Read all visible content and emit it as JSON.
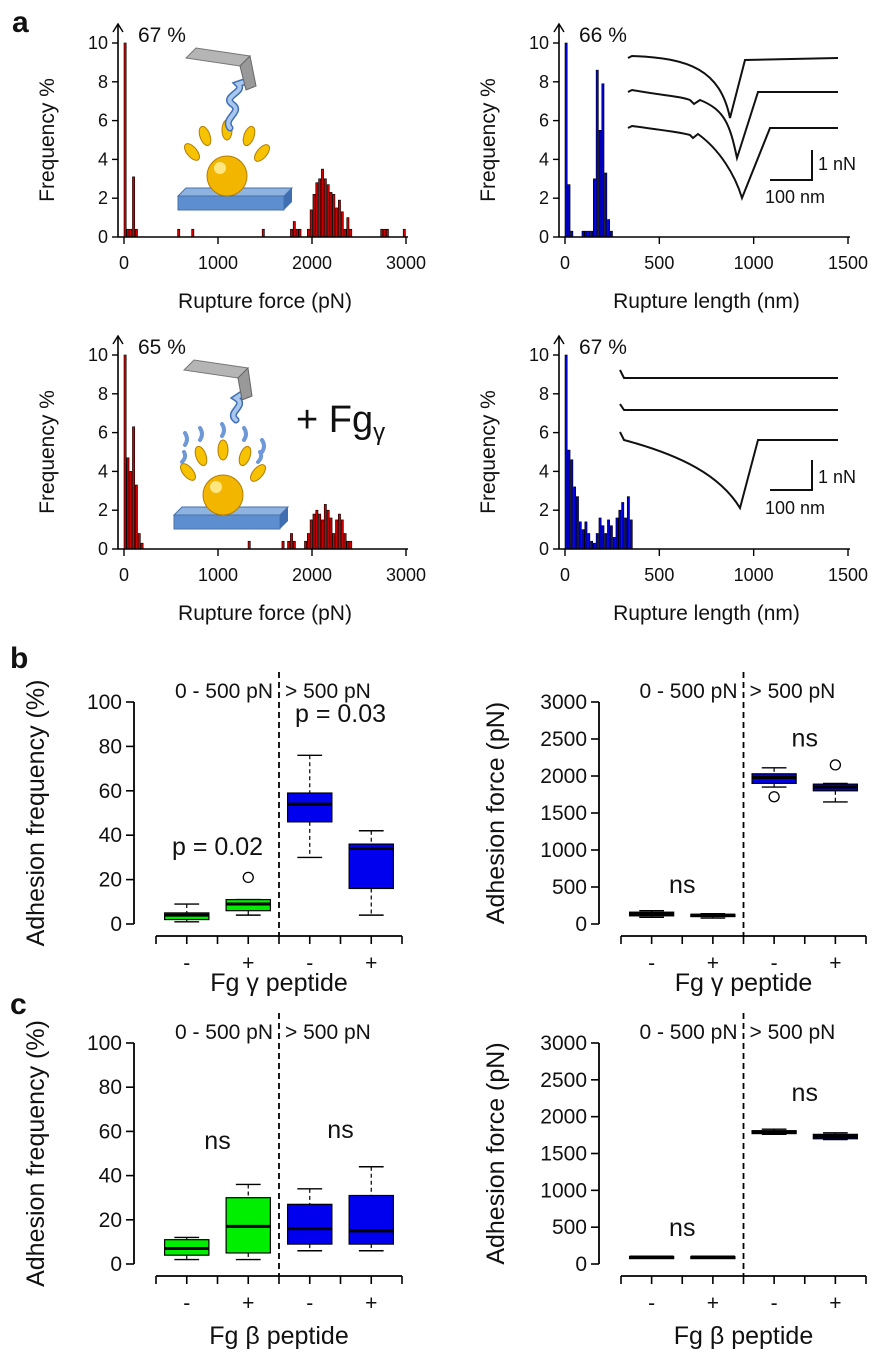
{
  "panel_labels": {
    "a": "a",
    "b": "b",
    "c": "c"
  },
  "annotations": {
    "fg_gamma_a": "+ Fg",
    "fg_gamma_sub": "γ",
    "scale_force": "1 nN",
    "scale_length": "100 nm"
  },
  "chart_data": [
    {
      "id": "a1",
      "type": "bar",
      "color": "#cc0000",
      "xlabel": "Rupture force (pN)",
      "ylabel": "Frequency %",
      "xlim": [
        0,
        3000
      ],
      "ylim": [
        0,
        10
      ],
      "xticks": [
        0,
        1000,
        2000,
        3000
      ],
      "yticks": [
        0,
        2,
        4,
        6,
        8,
        10
      ],
      "bin_width": 30,
      "overflow_label": "67  %",
      "x": [
        0,
        30,
        60,
        90,
        120,
        570,
        720,
        1470,
        1770,
        1800,
        1830,
        1860,
        1950,
        1980,
        2010,
        2040,
        2070,
        2100,
        2130,
        2160,
        2190,
        2220,
        2250,
        2280,
        2310,
        2340,
        2370,
        2400,
        2730,
        2760,
        2790,
        2970
      ],
      "y": [
        10,
        0.4,
        0.4,
        3.1,
        0.4,
        0.4,
        0.4,
        0.4,
        0.4,
        0.8,
        0.4,
        0.4,
        0.4,
        1.4,
        2.2,
        2.8,
        3.0,
        3.5,
        3.0,
        2.7,
        2.3,
        2.2,
        1.5,
        1.9,
        1.3,
        0.4,
        1.0,
        0.4,
        0.4,
        0.4,
        0.4,
        0.4
      ]
    },
    {
      "id": "a2",
      "type": "bar",
      "color": "#0000dd",
      "xlabel": "Rupture length (nm)",
      "ylabel": "Frequency %",
      "xlim": [
        0,
        1500
      ],
      "ylim": [
        0,
        10
      ],
      "xticks": [
        0,
        500,
        1000,
        1500
      ],
      "yticks": [
        0,
        2,
        4,
        6,
        8,
        10
      ],
      "bin_width": 15,
      "overflow_label": "66  %",
      "x": [
        0,
        15,
        30,
        90,
        105,
        120,
        135,
        150,
        165,
        180,
        195,
        210,
        225,
        240
      ],
      "y": [
        10,
        2.7,
        0.3,
        0.3,
        0.3,
        0.3,
        0.3,
        3.0,
        8.6,
        5.5,
        7.9,
        3.3,
        0.9,
        0.3
      ]
    },
    {
      "id": "a3",
      "type": "bar",
      "color": "#cc0000",
      "xlabel": "Rupture force (pN)",
      "ylabel": "Frequency %",
      "xlim": [
        0,
        3000
      ],
      "ylim": [
        0,
        10
      ],
      "xticks": [
        0,
        1000,
        2000,
        3000
      ],
      "yticks": [
        0,
        2,
        4,
        6,
        8,
        10
      ],
      "bin_width": 30,
      "overflow_label": "65  %",
      "x": [
        0,
        30,
        60,
        90,
        120,
        150,
        180,
        1320,
        1680,
        1740,
        1770,
        1800,
        1920,
        1950,
        1980,
        2010,
        2040,
        2070,
        2100,
        2130,
        2160,
        2190,
        2220,
        2250,
        2280,
        2310,
        2340,
        2370,
        2400
      ],
      "y": [
        10,
        4.7,
        4.0,
        6.3,
        3.3,
        0.8,
        0.3,
        0.4,
        0.4,
        0.4,
        0.8,
        0.4,
        0.4,
        0.8,
        1.5,
        1.8,
        2.0,
        1.8,
        1.5,
        2.3,
        2.0,
        1.6,
        0.8,
        1.5,
        1.8,
        1.5,
        0.8,
        0.4,
        0.4
      ]
    },
    {
      "id": "a4",
      "type": "bar",
      "color": "#0000dd",
      "xlabel": "Rupture length (nm)",
      "ylabel": "Frequency %",
      "xlim": [
        0,
        1500
      ],
      "ylim": [
        0,
        10
      ],
      "xticks": [
        0,
        500,
        1000,
        1500
      ],
      "yticks": [
        0,
        2,
        4,
        6,
        8,
        10
      ],
      "bin_width": 15,
      "overflow_label": "67  %",
      "x": [
        0,
        15,
        30,
        45,
        60,
        75,
        90,
        105,
        120,
        135,
        150,
        165,
        180,
        195,
        210,
        225,
        240,
        255,
        270,
        285,
        300,
        315,
        330,
        345
      ],
      "y": [
        10,
        5.1,
        4.6,
        3.2,
        2.7,
        1.4,
        1.0,
        1.4,
        0.8,
        0.4,
        0.3,
        0.8,
        1.6,
        1.2,
        0.8,
        1.5,
        1.2,
        0.6,
        1.6,
        2.0,
        2.4,
        1.6,
        2.7,
        1.5
      ]
    },
    {
      "id": "b1",
      "type": "box",
      "ylabel": "Adhesion frequency (%)",
      "xlabel": "Fg γ peptide",
      "ylim": [
        0,
        100
      ],
      "yticks": [
        0,
        20,
        40,
        60,
        80,
        100
      ],
      "categories": [
        "-",
        "+",
        "-",
        "+"
      ],
      "group_labels": [
        "0 - 500 pN",
        "> 500 pN"
      ],
      "boxes": [
        {
          "color": "#00ee00",
          "whislo": 1,
          "q1": 2,
          "med": 4,
          "q3": 5,
          "whishi": 9,
          "fliers": []
        },
        {
          "color": "#00ee00",
          "whislo": 4,
          "q1": 6,
          "med": 9,
          "q3": 11,
          "whishi": 11,
          "fliers": [
            21
          ]
        },
        {
          "color": "#0000ee",
          "whislo": 30,
          "q1": 46,
          "med": 54,
          "q3": 59,
          "whishi": 76,
          "fliers": []
        },
        {
          "color": "#0000ee",
          "whislo": 4,
          "q1": 16,
          "med": 34,
          "q3": 36,
          "whishi": 42,
          "fliers": []
        }
      ],
      "annotations": [
        {
          "text": "p = 0.02",
          "x": 0.5,
          "y": 31
        },
        {
          "text": "p = 0.03",
          "x": 2.5,
          "y": 91
        }
      ]
    },
    {
      "id": "b2",
      "type": "box",
      "ylabel": "Adhesion force (pN)",
      "xlabel": "Fg γ peptide",
      "ylim": [
        0,
        3000
      ],
      "yticks": [
        0,
        500,
        1000,
        1500,
        2000,
        2500,
        3000
      ],
      "categories": [
        "-",
        "+",
        "-",
        "+"
      ],
      "group_labels": [
        "0 - 500 pN",
        "> 500 pN"
      ],
      "boxes": [
        {
          "color": "#00ee00",
          "whislo": 90,
          "q1": 110,
          "med": 135,
          "q3": 160,
          "whishi": 180,
          "fliers": []
        },
        {
          "color": "#00ee00",
          "whislo": 80,
          "q1": 100,
          "med": 120,
          "q3": 130,
          "whishi": 140,
          "fliers": []
        },
        {
          "color": "#0000ee",
          "whislo": 1850,
          "q1": 1900,
          "med": 1980,
          "q3": 2030,
          "whishi": 2110,
          "fliers": [
            1720
          ]
        },
        {
          "color": "#0000ee",
          "whislo": 1650,
          "q1": 1800,
          "med": 1850,
          "q3": 1890,
          "whishi": 1900,
          "fliers": [
            2150
          ]
        }
      ],
      "annotations": [
        {
          "text": "ns",
          "x": 0.5,
          "y": 420
        },
        {
          "text": "ns",
          "x": 2.5,
          "y": 2400
        }
      ]
    },
    {
      "id": "c1",
      "type": "box",
      "ylabel": "Adhesion frequency (%)",
      "xlabel": "Fg β peptide",
      "ylim": [
        0,
        100
      ],
      "yticks": [
        0,
        20,
        40,
        60,
        80,
        100
      ],
      "categories": [
        "-",
        "+",
        "-",
        "+"
      ],
      "group_labels": [
        "0 - 500 pN",
        "> 500 pN"
      ],
      "boxes": [
        {
          "color": "#00ee00",
          "whislo": 2,
          "q1": 4,
          "med": 7,
          "q3": 11,
          "whishi": 12,
          "fliers": []
        },
        {
          "color": "#00ee00",
          "whislo": 2,
          "q1": 5,
          "med": 17,
          "q3": 30,
          "whishi": 36,
          "fliers": []
        },
        {
          "color": "#0000ee",
          "whislo": 6,
          "q1": 9,
          "med": 16,
          "q3": 27,
          "whishi": 34,
          "fliers": []
        },
        {
          "color": "#0000ee",
          "whislo": 6,
          "q1": 9,
          "med": 15,
          "q3": 31,
          "whishi": 44,
          "fliers": []
        }
      ],
      "annotations": [
        {
          "text": "ns",
          "x": 0.5,
          "y": 52
        },
        {
          "text": "ns",
          "x": 2.5,
          "y": 57
        }
      ]
    },
    {
      "id": "c2",
      "type": "box",
      "ylabel": "Adhesion force (pN)",
      "xlabel": "Fg β peptide",
      "ylim": [
        0,
        3000
      ],
      "yticks": [
        0,
        500,
        1000,
        1500,
        2000,
        2500,
        3000
      ],
      "categories": [
        "-",
        "+",
        "-",
        "+"
      ],
      "group_labels": [
        "0 - 500 pN",
        "> 500 pN"
      ],
      "boxes": [
        {
          "color": "#00ee00",
          "whislo": 85,
          "q1": 90,
          "med": 95,
          "q3": 100,
          "whishi": 105,
          "fliers": []
        },
        {
          "color": "#00ee00",
          "whislo": 85,
          "q1": 90,
          "med": 95,
          "q3": 100,
          "whishi": 105,
          "fliers": []
        },
        {
          "color": "#0000ee",
          "whislo": 1760,
          "q1": 1770,
          "med": 1790,
          "q3": 1810,
          "whishi": 1830,
          "fliers": []
        },
        {
          "color": "#0000ee",
          "whislo": 1690,
          "q1": 1700,
          "med": 1730,
          "q3": 1760,
          "whishi": 1780,
          "fliers": []
        }
      ],
      "annotations": [
        {
          "text": "ns",
          "x": 0.5,
          "y": 380
        },
        {
          "text": "ns",
          "x": 2.5,
          "y": 2210
        }
      ]
    }
  ]
}
